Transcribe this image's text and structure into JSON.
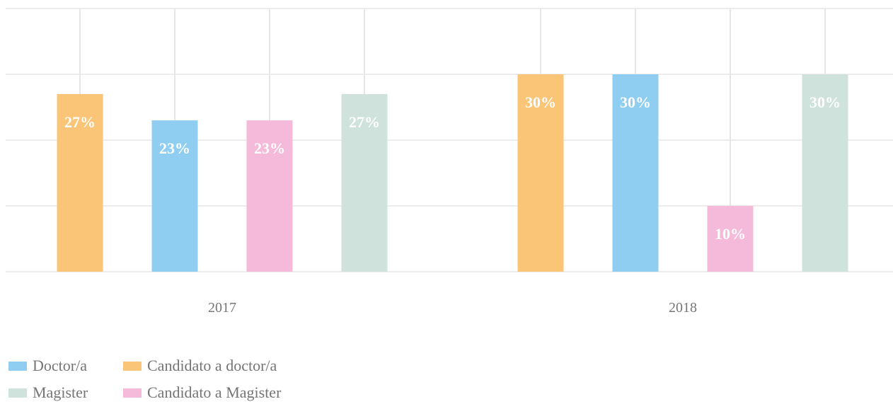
{
  "chart_data": {
    "type": "bar",
    "categories": [
      "2017",
      "2018"
    ],
    "ylim": [
      0,
      40
    ],
    "grid": true,
    "legend_position": "bottom-left",
    "value_suffix": "%",
    "series": [
      {
        "name": "Candidato a doctor/a",
        "color": "#FAC576",
        "values": [
          27,
          30
        ]
      },
      {
        "name": "Doctor/a",
        "color": "#90CEF1",
        "values": [
          23,
          30
        ]
      },
      {
        "name": "Candidato a Magister",
        "color": "#F5BADA",
        "values": [
          23,
          10
        ]
      },
      {
        "name": "Magister",
        "color": "#CFE2DB",
        "values": [
          27,
          30
        ]
      }
    ],
    "label_color": "#ffffff",
    "gridline_color": "#e6e6e6",
    "tick_label_color": "#757575"
  },
  "legend": {
    "items": [
      {
        "label": "Doctor/a",
        "color": "#90CEF1"
      },
      {
        "label": "Candidato a doctor/a",
        "color": "#FAC576"
      },
      {
        "label": "Magister",
        "color": "#CFE2DB"
      },
      {
        "label": "Candidato a Magister",
        "color": "#F5BADA"
      }
    ]
  }
}
